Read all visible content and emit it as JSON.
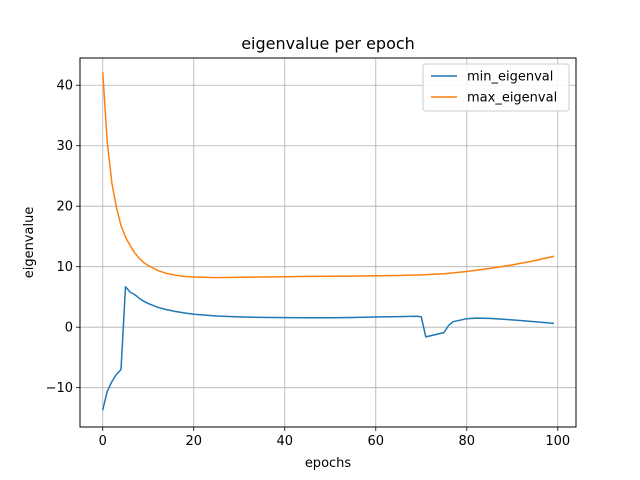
{
  "chart_data": {
    "type": "line",
    "title": "eigenvalue per epoch",
    "xlabel": "epochs",
    "ylabel": "eigenvalue",
    "xlim": [
      -5,
      104
    ],
    "ylim": [
      -16.5,
      44.5
    ],
    "xticks": [
      0,
      20,
      40,
      60,
      80,
      100
    ],
    "yticks": [
      -10,
      0,
      10,
      20,
      30,
      40
    ],
    "grid": true,
    "legend_position": "top-right",
    "series": [
      {
        "name": "min_eigenval",
        "color": "#1f77b4",
        "x": [
          0,
          1,
          2,
          3,
          4,
          5,
          6,
          7,
          8,
          9,
          10,
          12,
          14,
          16,
          18,
          20,
          25,
          30,
          35,
          40,
          45,
          50,
          55,
          60,
          65,
          69,
          70,
          71,
          75,
          76,
          77,
          80,
          82,
          85,
          90,
          95,
          99
        ],
        "y": [
          -13.6,
          -10.6,
          -9.0,
          -7.8,
          -7.0,
          6.7,
          5.8,
          5.4,
          4.8,
          4.3,
          3.9,
          3.3,
          2.9,
          2.6,
          2.35,
          2.15,
          1.85,
          1.7,
          1.62,
          1.58,
          1.56,
          1.56,
          1.6,
          1.68,
          1.75,
          1.8,
          1.7,
          -1.6,
          -0.9,
          0.3,
          0.9,
          1.4,
          1.5,
          1.45,
          1.2,
          0.9,
          0.65
        ]
      },
      {
        "name": "max_eigenval",
        "color": "#ff7f0e",
        "x": [
          0,
          1,
          2,
          3,
          4,
          5,
          6,
          7,
          8,
          9,
          10,
          12,
          14,
          16,
          18,
          20,
          25,
          30,
          35,
          40,
          45,
          50,
          55,
          60,
          65,
          70,
          75,
          80,
          85,
          90,
          95,
          99
        ],
        "y": [
          42.0,
          30.5,
          23.8,
          19.8,
          16.8,
          14.9,
          13.5,
          12.3,
          11.4,
          10.7,
          10.2,
          9.4,
          8.9,
          8.6,
          8.4,
          8.3,
          8.2,
          8.25,
          8.3,
          8.35,
          8.4,
          8.42,
          8.45,
          8.5,
          8.55,
          8.65,
          8.85,
          9.2,
          9.7,
          10.3,
          11.0,
          11.7
        ]
      }
    ]
  }
}
